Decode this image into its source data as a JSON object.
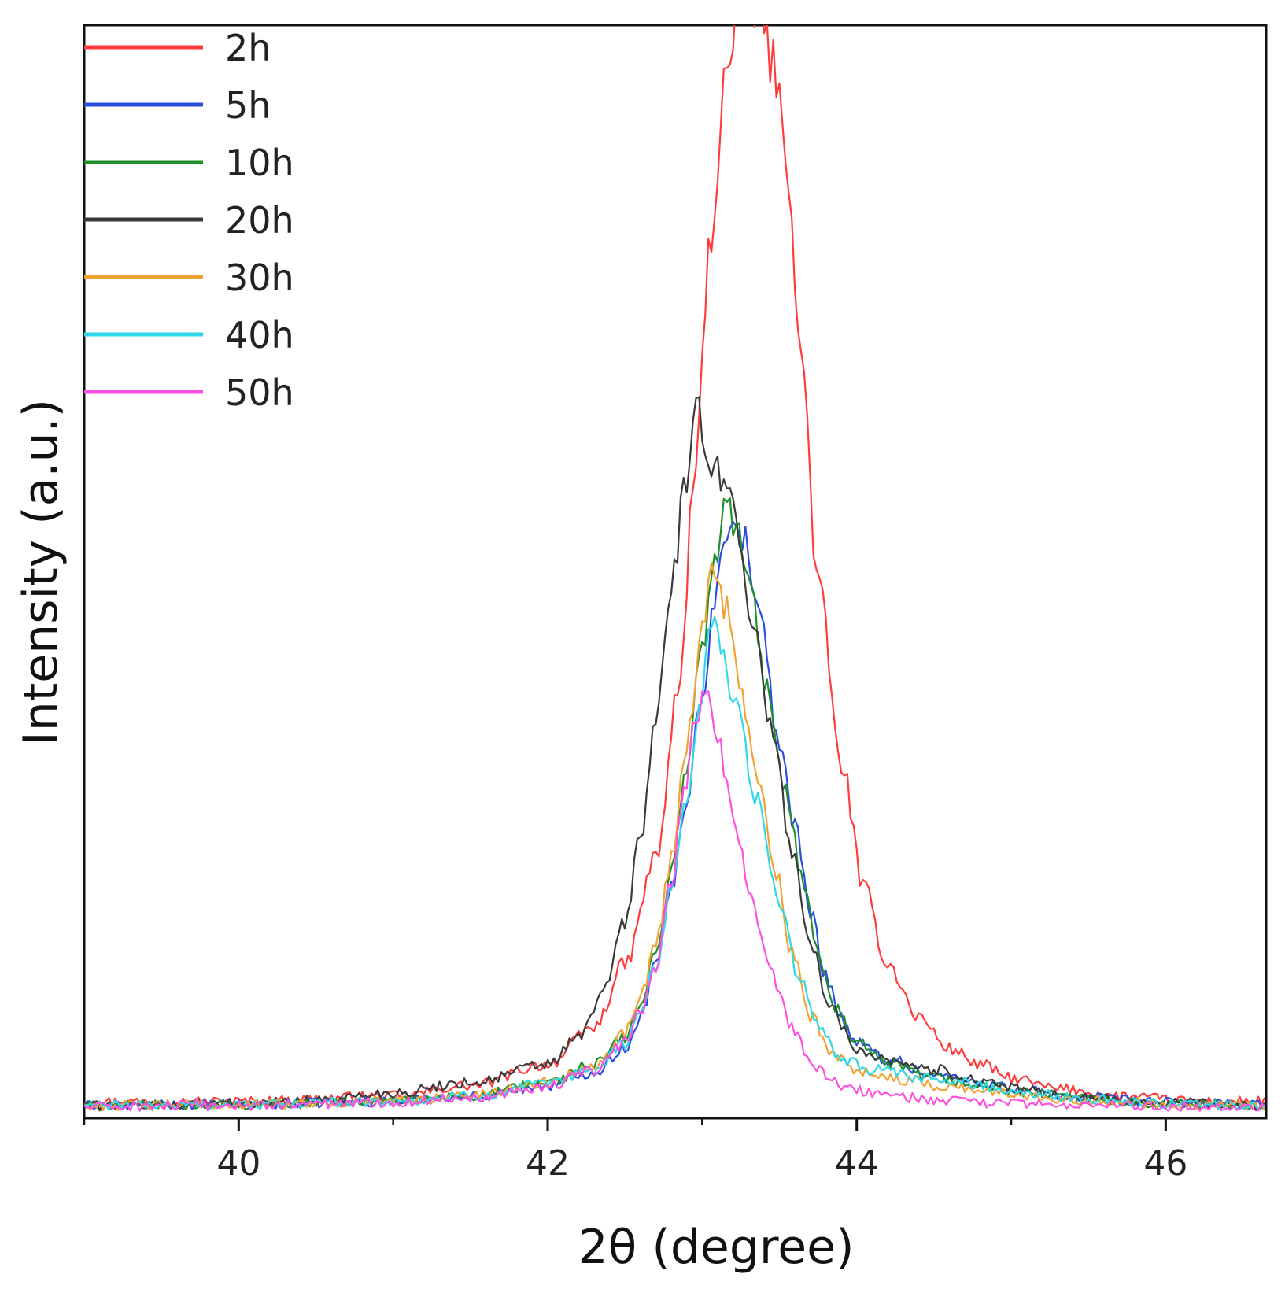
{
  "chart_data": {
    "type": "line",
    "xlabel": "2θ (degree)",
    "ylabel": "Intensity (a.u.)",
    "xlim": [
      39.0,
      46.65
    ],
    "ylim": [
      0,
      100
    ],
    "xticks": [
      40,
      42,
      44,
      46
    ],
    "xticks_minor": [
      39,
      41,
      43,
      45
    ],
    "grid": false,
    "legend_position": "top-left",
    "series": [
      {
        "name": "2h",
        "color": "#ff3b3b",
        "points": [
          [
            39,
            1
          ],
          [
            40,
            1
          ],
          [
            41,
            1.5
          ],
          [
            41.5,
            2.5
          ],
          [
            42,
            4.5
          ],
          [
            42.3,
            8
          ],
          [
            42.5,
            14
          ],
          [
            42.7,
            24
          ],
          [
            42.85,
            40
          ],
          [
            42.95,
            60
          ],
          [
            43.05,
            82
          ],
          [
            43.15,
            98
          ],
          [
            43.25,
            105
          ],
          [
            43.35,
            105
          ],
          [
            43.45,
            100
          ],
          [
            43.55,
            90
          ],
          [
            43.65,
            70
          ],
          [
            43.75,
            50
          ],
          [
            43.9,
            33
          ],
          [
            44.05,
            21
          ],
          [
            44.2,
            14
          ],
          [
            44.4,
            9
          ],
          [
            44.6,
            6
          ],
          [
            44.8,
            4.5
          ],
          [
            45,
            3.2
          ],
          [
            45.3,
            2.2
          ],
          [
            45.7,
            1.5
          ],
          [
            46.2,
            1
          ],
          [
            46.65,
            1
          ]
        ]
      },
      {
        "name": "5h",
        "color": "#2a4de0",
        "points": [
          [
            39,
            0.6
          ],
          [
            40,
            0.7
          ],
          [
            41,
            1
          ],
          [
            41.5,
            1.5
          ],
          [
            42,
            2.5
          ],
          [
            42.3,
            3.8
          ],
          [
            42.5,
            6
          ],
          [
            42.6,
            9
          ],
          [
            42.7,
            14
          ],
          [
            42.8,
            21
          ],
          [
            42.9,
            30
          ],
          [
            43,
            40
          ],
          [
            43.1,
            50
          ],
          [
            43.15,
            55
          ],
          [
            43.2,
            57
          ],
          [
            43.28,
            54
          ],
          [
            43.38,
            46
          ],
          [
            43.5,
            35
          ],
          [
            43.6,
            27
          ],
          [
            43.7,
            19
          ],
          [
            43.8,
            13
          ],
          [
            43.9,
            9
          ],
          [
            44,
            6.5
          ],
          [
            44.2,
            5
          ],
          [
            44.5,
            3.5
          ],
          [
            44.8,
            2.8
          ],
          [
            45.1,
            2
          ],
          [
            45.5,
            1.3
          ],
          [
            46,
            0.9
          ],
          [
            46.65,
            0.6
          ]
        ]
      },
      {
        "name": "10h",
        "color": "#1e8f2a",
        "points": [
          [
            39,
            0.6
          ],
          [
            40,
            0.7
          ],
          [
            41,
            1
          ],
          [
            41.5,
            1.5
          ],
          [
            42,
            2.8
          ],
          [
            42.3,
            4.5
          ],
          [
            42.5,
            7
          ],
          [
            42.6,
            10
          ],
          [
            42.7,
            15
          ],
          [
            42.8,
            23
          ],
          [
            42.9,
            33
          ],
          [
            43,
            44
          ],
          [
            43.08,
            52
          ],
          [
            43.15,
            57
          ],
          [
            43.22,
            56
          ],
          [
            43.3,
            50
          ],
          [
            43.42,
            40
          ],
          [
            43.55,
            30
          ],
          [
            43.65,
            22
          ],
          [
            43.75,
            15
          ],
          [
            43.85,
            10
          ],
          [
            44,
            6.5
          ],
          [
            44.2,
            4.5
          ],
          [
            44.5,
            3.2
          ],
          [
            44.8,
            2.5
          ],
          [
            45.1,
            1.8
          ],
          [
            45.5,
            1.2
          ],
          [
            46,
            0.8
          ],
          [
            46.65,
            0.6
          ]
        ]
      },
      {
        "name": "20h",
        "color": "#3a3a3a",
        "points": [
          [
            39,
            0.6
          ],
          [
            40,
            0.8
          ],
          [
            40.5,
            1.1
          ],
          [
            41,
            1.8
          ],
          [
            41.5,
            2.8
          ],
          [
            42,
            4.5
          ],
          [
            42.2,
            7
          ],
          [
            42.35,
            11
          ],
          [
            42.5,
            18
          ],
          [
            42.6,
            26
          ],
          [
            42.7,
            37
          ],
          [
            42.8,
            50
          ],
          [
            42.9,
            60
          ],
          [
            42.97,
            66
          ],
          [
            43.05,
            62
          ],
          [
            43.15,
            60
          ],
          [
            43.22,
            56
          ],
          [
            43.32,
            47
          ],
          [
            43.45,
            36
          ],
          [
            43.58,
            25
          ],
          [
            43.7,
            16
          ],
          [
            43.82,
            10
          ],
          [
            44,
            6
          ],
          [
            44.2,
            5
          ],
          [
            44.5,
            4
          ],
          [
            44.8,
            3
          ],
          [
            45.1,
            2
          ],
          [
            45.5,
            1.3
          ],
          [
            46,
            0.9
          ],
          [
            46.65,
            0.6
          ]
        ]
      },
      {
        "name": "30h",
        "color": "#f2a230",
        "points": [
          [
            39,
            0.6
          ],
          [
            40,
            0.7
          ],
          [
            41,
            1
          ],
          [
            41.5,
            1.6
          ],
          [
            42,
            2.8
          ],
          [
            42.3,
            4.5
          ],
          [
            42.5,
            7.5
          ],
          [
            42.6,
            11
          ],
          [
            42.7,
            16
          ],
          [
            42.8,
            24
          ],
          [
            42.9,
            35
          ],
          [
            43,
            46
          ],
          [
            43.07,
            52
          ],
          [
            43.15,
            48
          ],
          [
            43.25,
            40
          ],
          [
            43.35,
            32
          ],
          [
            43.47,
            23
          ],
          [
            43.58,
            15
          ],
          [
            43.7,
            9
          ],
          [
            43.85,
            5.5
          ],
          [
            44,
            4
          ],
          [
            44.3,
            3
          ],
          [
            44.6,
            2.4
          ],
          [
            45,
            1.7
          ],
          [
            45.5,
            1.1
          ],
          [
            46,
            0.8
          ],
          [
            46.65,
            0.6
          ]
        ]
      },
      {
        "name": "40h",
        "color": "#2dd9e6",
        "points": [
          [
            39,
            0.6
          ],
          [
            40,
            0.7
          ],
          [
            41,
            1
          ],
          [
            41.5,
            1.5
          ],
          [
            42,
            2.6
          ],
          [
            42.3,
            4
          ],
          [
            42.5,
            6.5
          ],
          [
            42.6,
            9.5
          ],
          [
            42.7,
            14
          ],
          [
            42.8,
            21
          ],
          [
            42.9,
            30
          ],
          [
            42.98,
            38
          ],
          [
            43.05,
            47
          ],
          [
            43.12,
            44
          ],
          [
            43.22,
            38
          ],
          [
            43.35,
            30
          ],
          [
            43.5,
            20
          ],
          [
            43.62,
            13
          ],
          [
            43.75,
            8
          ],
          [
            43.9,
            5
          ],
          [
            44.1,
            4
          ],
          [
            44.4,
            3.2
          ],
          [
            44.7,
            2.8
          ],
          [
            45,
            2
          ],
          [
            45.5,
            1.2
          ],
          [
            46,
            0.8
          ],
          [
            46.65,
            0.6
          ]
        ]
      },
      {
        "name": "50h",
        "color": "#ff4fe0",
        "points": [
          [
            39,
            0.5
          ],
          [
            40,
            0.6
          ],
          [
            41,
            0.9
          ],
          [
            41.5,
            1.4
          ],
          [
            42,
            2.4
          ],
          [
            42.3,
            4
          ],
          [
            42.5,
            6.5
          ],
          [
            42.6,
            9.5
          ],
          [
            42.7,
            14
          ],
          [
            42.8,
            22
          ],
          [
            42.88,
            30
          ],
          [
            42.95,
            37
          ],
          [
            43.02,
            40
          ],
          [
            43.1,
            35
          ],
          [
            43.2,
            28
          ],
          [
            43.32,
            20
          ],
          [
            43.45,
            13
          ],
          [
            43.58,
            8
          ],
          [
            43.72,
            4.5
          ],
          [
            43.85,
            2.8
          ],
          [
            44,
            2
          ],
          [
            44.3,
            1.4
          ],
          [
            44.6,
            1
          ],
          [
            45,
            0.8
          ],
          [
            45.5,
            0.6
          ],
          [
            46.65,
            0.5
          ]
        ]
      }
    ]
  }
}
